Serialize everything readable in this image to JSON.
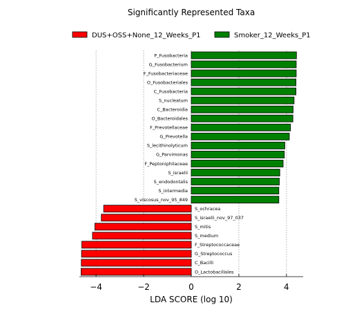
{
  "chart_data": {
    "type": "bar",
    "orientation": "horizontal",
    "title": "Significantly Represented Taxa",
    "xlabel": "LDA SCORE (log 10)",
    "ylabel": "",
    "xlim": [
      -4.7,
      4.7
    ],
    "x_ticks": [
      -4,
      -2,
      0,
      2,
      4
    ],
    "x_tick_labels": [
      "−4",
      "−2",
      "0",
      "2",
      "4"
    ],
    "grid": "vertical dotted",
    "legend_position": "top",
    "colors": {
      "DUS+OSS+None_12_Weeks_P1": "#ff0000",
      "Smoker_12_Weeks_P1": "#008000"
    },
    "series": [
      {
        "name": "Smoker_12_Weeks_P1",
        "categories": [
          "P_Fusobacteria",
          "G_Fusobacterium",
          "F_Fusobacteriaceae",
          "O_Fusobacteriales",
          "C_Fusobacteria",
          "S_nucleatum",
          "C_Bacteroidia",
          "O_Bacteroidales",
          "F_Prevotellaceae",
          "G_Prevotella",
          "S_lecithinolyticum",
          "G_Parvimonas",
          "F_Peptoniphilaceae",
          "S_israelii",
          "S_endodontalis",
          "S_intermedia",
          "S_viscosus_nov_95_849"
        ],
        "values": [
          4.42,
          4.41,
          4.41,
          4.4,
          4.4,
          4.32,
          4.28,
          4.27,
          4.17,
          4.12,
          3.93,
          3.91,
          3.86,
          3.72,
          3.7,
          3.68,
          3.68
        ]
      },
      {
        "name": "DUS+OSS+None_12_Weeks_P1",
        "categories": [
          "S_ochracea",
          "S_israelii_nov_97_037",
          "S_mitis",
          "S_medium",
          "F_Streptococcaceae",
          "G_Streptococcus",
          "C_Bacilli",
          "O_Lactobacillales"
        ],
        "values": [
          -3.68,
          -3.78,
          -4.05,
          -4.15,
          -4.6,
          -4.61,
          -4.62,
          -4.63
        ]
      }
    ]
  }
}
